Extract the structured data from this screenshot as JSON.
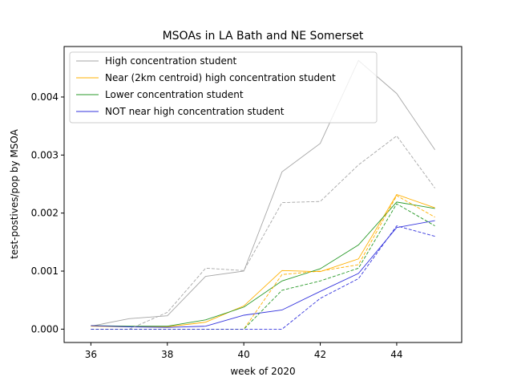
{
  "chart_data": {
    "type": "line",
    "title": "MSOAs in LA Bath and NE Somerset",
    "xlabel": "week of 2020",
    "ylabel": "test-postives/pop by MSOA",
    "xlim": [
      35.3,
      45.7
    ],
    "ylim": [
      -0.00023,
      0.00487
    ],
    "xticks": [
      36,
      38,
      40,
      42,
      44
    ],
    "yticks": [
      0.0,
      0.001,
      0.002,
      0.003,
      0.004
    ],
    "ytick_labels": [
      "0.000",
      "0.001",
      "0.002",
      "0.003",
      "0.004"
    ],
    "grid": false,
    "legend_position": "top-left",
    "x": [
      36,
      37,
      38,
      39,
      40,
      41,
      42,
      43,
      44,
      45
    ],
    "series": [
      {
        "name": "High concentration student",
        "color": "#a6a6a6",
        "style": "solid",
        "values": [
          5e-05,
          0.00018,
          0.00023,
          0.00091,
          0.001,
          0.00271,
          0.0032,
          0.00463,
          0.00406,
          0.00309
        ]
      },
      {
        "name": "Near (2km centroid) high concentration student",
        "color": "#ffb000",
        "style": "solid",
        "values": [
          5e-05,
          4e-05,
          4e-05,
          0.00012,
          0.0004,
          0.00101,
          0.00099,
          0.00121,
          0.00232,
          0.00209
        ]
      },
      {
        "name": "Lower concentration student",
        "color": "#2a9a2a",
        "style": "solid",
        "values": [
          6e-05,
          5e-05,
          5e-05,
          0.00016,
          0.00038,
          0.00083,
          0.00104,
          0.00145,
          0.00219,
          0.00208
        ]
      },
      {
        "name": "NOT near high concentration student",
        "color": "#3333dd",
        "style": "solid",
        "values": [
          6e-05,
          4e-05,
          3e-05,
          5e-05,
          0.00024,
          0.00033,
          0.00065,
          0.00096,
          0.00175,
          0.00187
        ]
      },
      {
        "color": "#a6a6a6",
        "style": "dashed",
        "values": [
          0.0,
          0.0,
          0.00029,
          0.00105,
          0.00101,
          0.00218,
          0.0022,
          0.00283,
          0.00333,
          0.00243
        ]
      },
      {
        "color": "#ffb000",
        "style": "dashed",
        "values": [
          0.0,
          0.0,
          0.0,
          0.0,
          0.0,
          0.00094,
          0.001,
          0.00111,
          0.0023,
          0.00193
        ]
      },
      {
        "color": "#2a9a2a",
        "style": "dashed",
        "values": [
          0.0,
          0.0,
          0.0,
          0.0,
          0.0,
          0.00067,
          0.00083,
          0.00105,
          0.00216,
          0.00178
        ]
      },
      {
        "color": "#3333dd",
        "style": "dashed",
        "values": [
          0.0,
          0.0,
          0.0,
          0.0,
          0.0,
          0.0,
          0.00053,
          0.00087,
          0.00178,
          0.0016
        ]
      }
    ]
  }
}
